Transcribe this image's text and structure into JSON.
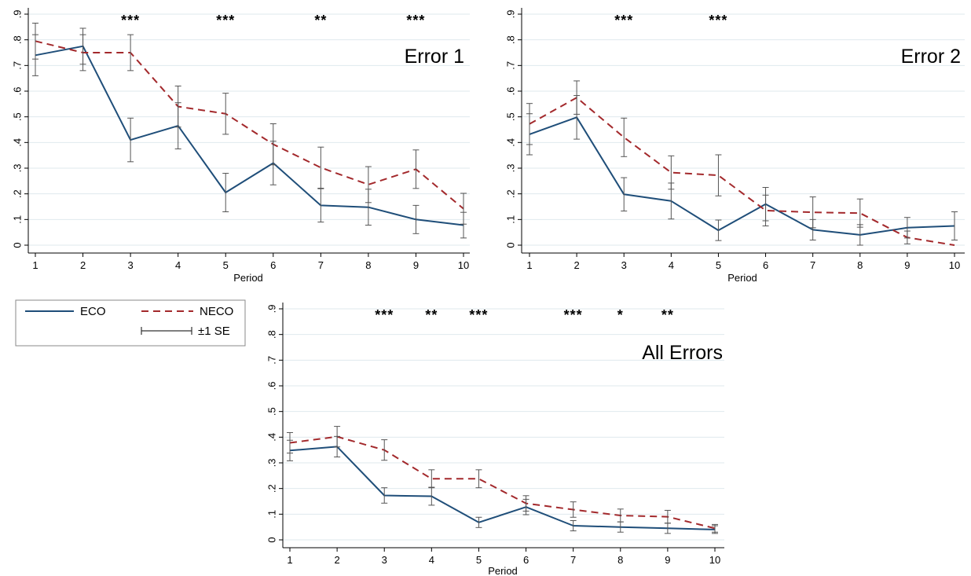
{
  "legend": {
    "eco_label": "ECO",
    "neco_label": "NECO",
    "se_label": "±1 SE"
  },
  "colors": {
    "eco": "#1f4e79",
    "neco": "#a3292c",
    "error_bar": "#555555",
    "grid": "#dfe9ee",
    "axis": "#000000"
  },
  "chart_data": [
    {
      "type": "line",
      "title": "Error 1",
      "xlabel": "Period",
      "ylabel": "",
      "x": [
        1,
        2,
        3,
        4,
        5,
        6,
        7,
        8,
        9,
        10
      ],
      "ylim": [
        0,
        0.9
      ],
      "yticks": [
        "0",
        ".1",
        ".2",
        ".3",
        ".4",
        ".5",
        ".6",
        ".7",
        ".8",
        ".9"
      ],
      "significance": [
        {
          "x": 3,
          "stars": "***"
        },
        {
          "x": 5,
          "stars": "***"
        },
        {
          "x": 7,
          "stars": "**"
        },
        {
          "x": 9,
          "stars": "***"
        }
      ],
      "series": [
        {
          "name": "ECO",
          "values": [
            0.74,
            0.775,
            0.41,
            0.465,
            0.205,
            0.32,
            0.155,
            0.148,
            0.1,
            0.078
          ],
          "se": [
            0.08,
            0.07,
            0.085,
            0.09,
            0.075,
            0.085,
            0.065,
            0.07,
            0.055,
            0.05
          ]
        },
        {
          "name": "NECO",
          "values": [
            0.795,
            0.75,
            0.75,
            0.54,
            0.512,
            0.393,
            0.302,
            0.236,
            0.296,
            0.142
          ],
          "se": [
            0.07,
            0.07,
            0.07,
            0.08,
            0.08,
            0.08,
            0.08,
            0.07,
            0.075,
            0.06
          ]
        }
      ]
    },
    {
      "type": "line",
      "title": "Error 2",
      "xlabel": "Period",
      "ylabel": "",
      "x": [
        1,
        2,
        3,
        4,
        5,
        6,
        7,
        8,
        9,
        10
      ],
      "ylim": [
        0,
        0.9
      ],
      "yticks": [
        "0",
        ".1",
        ".2",
        ".3",
        ".4",
        ".5",
        ".6",
        ".7",
        ".8",
        ".9"
      ],
      "significance": [
        {
          "x": 3,
          "stars": "***"
        },
        {
          "x": 5,
          "stars": "***"
        }
      ],
      "series": [
        {
          "name": "ECO",
          "values": [
            0.432,
            0.498,
            0.198,
            0.172,
            0.058,
            0.16,
            0.06,
            0.04,
            0.068,
            0.075
          ],
          "se": [
            0.08,
            0.085,
            0.065,
            0.07,
            0.04,
            0.065,
            0.04,
            0.04,
            0.04,
            0.055
          ]
        },
        {
          "name": "NECO",
          "values": [
            0.472,
            0.575,
            0.42,
            0.283,
            0.272,
            0.135,
            0.128,
            0.125,
            0.03,
            0.0
          ],
          "se": [
            0.08,
            0.065,
            0.075,
            0.065,
            0.08,
            0.06,
            0.06,
            0.055,
            0.025,
            0.0
          ]
        }
      ]
    },
    {
      "type": "line",
      "title": "All Errors",
      "xlabel": "Period",
      "ylabel": "",
      "x": [
        1,
        2,
        3,
        4,
        5,
        6,
        7,
        8,
        9,
        10
      ],
      "ylim": [
        0,
        0.9
      ],
      "yticks": [
        "0",
        ".1",
        ".2",
        ".3",
        ".4",
        ".5",
        ".6",
        ".7",
        ".8",
        ".9"
      ],
      "significance": [
        {
          "x": 3,
          "stars": "***"
        },
        {
          "x": 4,
          "stars": "**"
        },
        {
          "x": 5,
          "stars": "***"
        },
        {
          "x": 7,
          "stars": "***"
        },
        {
          "x": 8,
          "stars": "*"
        },
        {
          "x": 9,
          "stars": "**"
        }
      ],
      "series": [
        {
          "name": "ECO",
          "values": [
            0.348,
            0.363,
            0.173,
            0.17,
            0.068,
            0.128,
            0.055,
            0.05,
            0.045,
            0.04
          ],
          "se": [
            0.04,
            0.04,
            0.03,
            0.035,
            0.02,
            0.03,
            0.02,
            0.02,
            0.02,
            0.015
          ]
        },
        {
          "name": "NECO",
          "values": [
            0.378,
            0.402,
            0.35,
            0.238,
            0.238,
            0.142,
            0.118,
            0.095,
            0.09,
            0.045
          ],
          "se": [
            0.04,
            0.04,
            0.04,
            0.035,
            0.035,
            0.03,
            0.03,
            0.025,
            0.025,
            0.015
          ]
        }
      ]
    }
  ]
}
